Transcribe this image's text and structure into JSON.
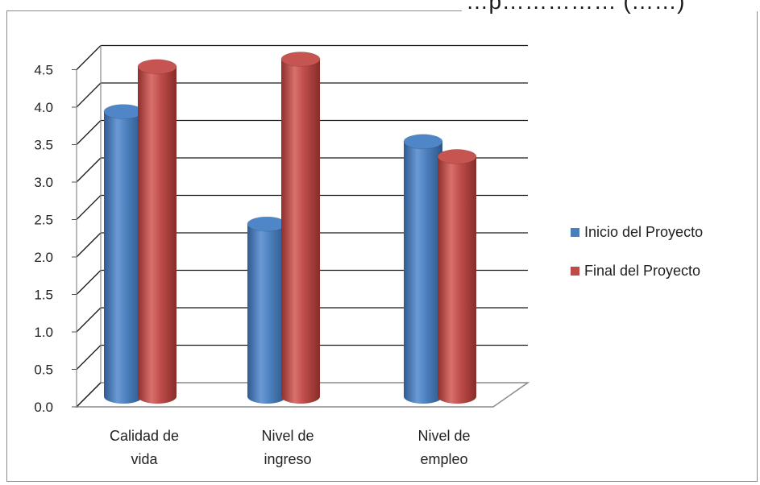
{
  "title_fragment": "…p…………… (……)",
  "chart_data": {
    "type": "bar",
    "categories": [
      [
        "Calidad de",
        "vida"
      ],
      [
        "Nivel de",
        "ingreso"
      ],
      [
        "Nivel de",
        "empleo"
      ]
    ],
    "series": [
      {
        "name": "Inicio del Proyecto",
        "color": "#4a7ebb",
        "values": [
          3.8,
          2.3,
          3.4
        ]
      },
      {
        "name": "Final del Proyecto",
        "color": "#be4b48",
        "values": [
          4.4,
          4.5,
          3.2
        ]
      }
    ],
    "ylim": [
      0,
      4.5
    ],
    "yticks": [
      "0.0",
      "0.5",
      "1.0",
      "1.5",
      "2.0",
      "2.5",
      "3.0",
      "3.5",
      "4.0",
      "4.5"
    ],
    "grid": true,
    "legend_position": "right",
    "style": "3d-cylinder"
  }
}
